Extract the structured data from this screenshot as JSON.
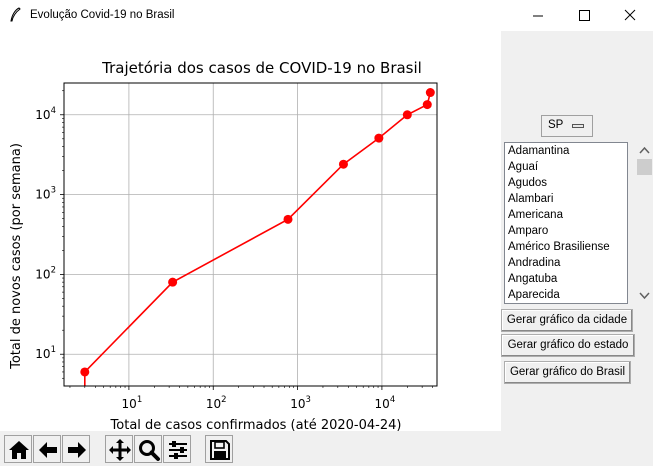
{
  "window": {
    "title": "Evolução Covid-19 no Brasil"
  },
  "chart_data": {
    "type": "line",
    "title": "Trajetória dos casos de COVID-19 no Brasil",
    "xlabel": "Total de casos confirmados (até 2020-04-24)",
    "ylabel": "Total de novos casos (por semana)",
    "xscale": "log",
    "yscale": "log",
    "xlim": [
      1.7,
      45000
    ],
    "ylim": [
      4,
      25000
    ],
    "grid": true,
    "x_ticks": [
      10,
      100,
      1000,
      10000
    ],
    "y_ticks": [
      10,
      100,
      1000,
      10000
    ],
    "x_tick_labels": [
      {
        "base": "10",
        "exp": "1"
      },
      {
        "base": "10",
        "exp": "2"
      },
      {
        "base": "10",
        "exp": "3"
      },
      {
        "base": "10",
        "exp": "4"
      }
    ],
    "y_tick_labels": [
      {
        "base": "10",
        "exp": "1"
      },
      {
        "base": "10",
        "exp": "2"
      },
      {
        "base": "10",
        "exp": "3"
      },
      {
        "base": "10",
        "exp": "4"
      }
    ],
    "color": "#ff0000",
    "series": [
      {
        "x": [
          3,
          33,
          770,
          3500,
          9200,
          20000,
          34500,
          37500
        ],
        "y": [
          6,
          80,
          490,
          2400,
          5100,
          10000,
          13400,
          19000
        ]
      }
    ]
  },
  "controls": {
    "state_selected": "SP",
    "cities": [
      "Adamantina",
      "Aguaí",
      "Agudos",
      "Alambari",
      "Americana",
      "Amparo",
      "Américo Brasiliense",
      "Andradina",
      "Angatuba",
      "Aparecida"
    ],
    "btn_city": "Gerar gráfico da cidade",
    "btn_state": "Gerar gráfico do estado",
    "btn_country": "Gerar gráfico do Brasil"
  },
  "toolbar": {
    "icons": [
      "home-icon",
      "back-arrow-icon",
      "forward-arrow-icon",
      "pan-icon",
      "zoom-icon",
      "configure-subplots-icon",
      "save-icon"
    ]
  }
}
